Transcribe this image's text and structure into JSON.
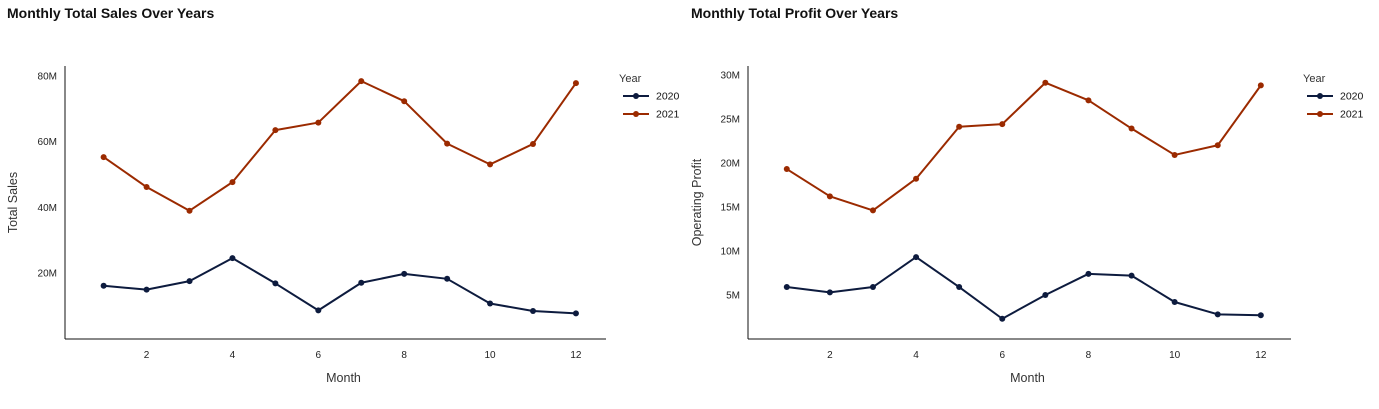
{
  "colors": {
    "2020": "#0d1b3e",
    "2021": "#9b2a00",
    "axis": "#111111"
  },
  "chart_data": [
    {
      "type": "line",
      "title": "Monthly Total Sales Over Years",
      "xlabel": "Month",
      "ylabel": "Total Sales",
      "x": [
        1,
        2,
        3,
        4,
        5,
        6,
        7,
        8,
        9,
        10,
        11,
        12
      ],
      "x_ticks": [
        2,
        4,
        6,
        8,
        10,
        12
      ],
      "xlim": [
        0.1,
        12.7
      ],
      "ylim": [
        0,
        83
      ],
      "y_ticks": [
        20,
        40,
        60,
        80
      ],
      "y_tick_labels": [
        "20M",
        "40M",
        "60M",
        "80M"
      ],
      "grid": false,
      "legend_title": "Year",
      "legend_position": "top-right",
      "series": [
        {
          "name": "2020",
          "color": "#0d1b3e",
          "values": [
            16.2,
            15.0,
            17.6,
            24.6,
            16.9,
            8.7,
            17.1,
            19.8,
            18.3,
            10.8,
            8.5,
            7.8
          ]
        },
        {
          "name": "2021",
          "color": "#9b2a00",
          "values": [
            55.3,
            46.2,
            39.0,
            47.7,
            63.5,
            65.8,
            78.4,
            72.3,
            59.4,
            53.1,
            59.3,
            77.8
          ]
        }
      ]
    },
    {
      "type": "line",
      "title": "Monthly Total Profit Over Years",
      "xlabel": "Month",
      "ylabel": "Operating Profit",
      "x": [
        1,
        2,
        3,
        4,
        5,
        6,
        7,
        8,
        9,
        10,
        11,
        12
      ],
      "x_ticks": [
        2,
        4,
        6,
        8,
        10,
        12
      ],
      "xlim": [
        0.1,
        12.7
      ],
      "ylim": [
        0,
        31
      ],
      "y_ticks": [
        5,
        10,
        15,
        20,
        25,
        30
      ],
      "y_tick_labels": [
        "5M",
        "10M",
        "15M",
        "20M",
        "25M",
        "30M"
      ],
      "grid": false,
      "legend_title": "Year",
      "legend_position": "top-right",
      "series": [
        {
          "name": "2020",
          "color": "#0d1b3e",
          "values": [
            5.9,
            5.3,
            5.9,
            9.3,
            5.9,
            2.3,
            5.0,
            7.4,
            7.2,
            4.2,
            2.8,
            2.7
          ]
        },
        {
          "name": "2021",
          "color": "#9b2a00",
          "values": [
            19.3,
            16.2,
            14.6,
            18.2,
            24.1,
            24.4,
            29.1,
            27.1,
            23.9,
            20.9,
            22.0,
            28.8
          ]
        }
      ]
    }
  ]
}
